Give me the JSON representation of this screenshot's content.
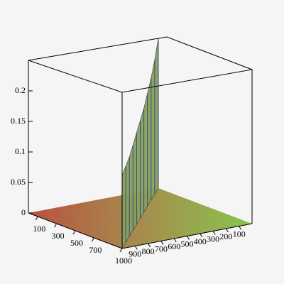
{
  "chart_data": {
    "type": "surface3d",
    "x": [
      1000,
      900,
      800,
      700,
      600,
      500,
      400,
      300,
      200,
      100,
      0
    ],
    "y": [
      1000,
      900,
      800,
      700,
      600,
      500,
      400,
      300,
      200,
      100,
      0
    ],
    "values": [
      0.12,
      0.125,
      0.13,
      0.14,
      0.15,
      0.16,
      0.17,
      0.185,
      0.2,
      0.22,
      0.245
    ],
    "color": "#86a060",
    "xlim": [
      0,
      1000
    ],
    "ylim": [
      0,
      1000
    ],
    "zlim": [
      0,
      0.25
    ],
    "xticks": [
      100,
      300,
      500,
      700,
      1000
    ],
    "yticks": [
      900,
      800,
      700,
      600,
      500,
      400,
      300,
      200,
      100
    ],
    "zticks": [
      0,
      0.05,
      0.1,
      0.15,
      0.2
    ]
  }
}
